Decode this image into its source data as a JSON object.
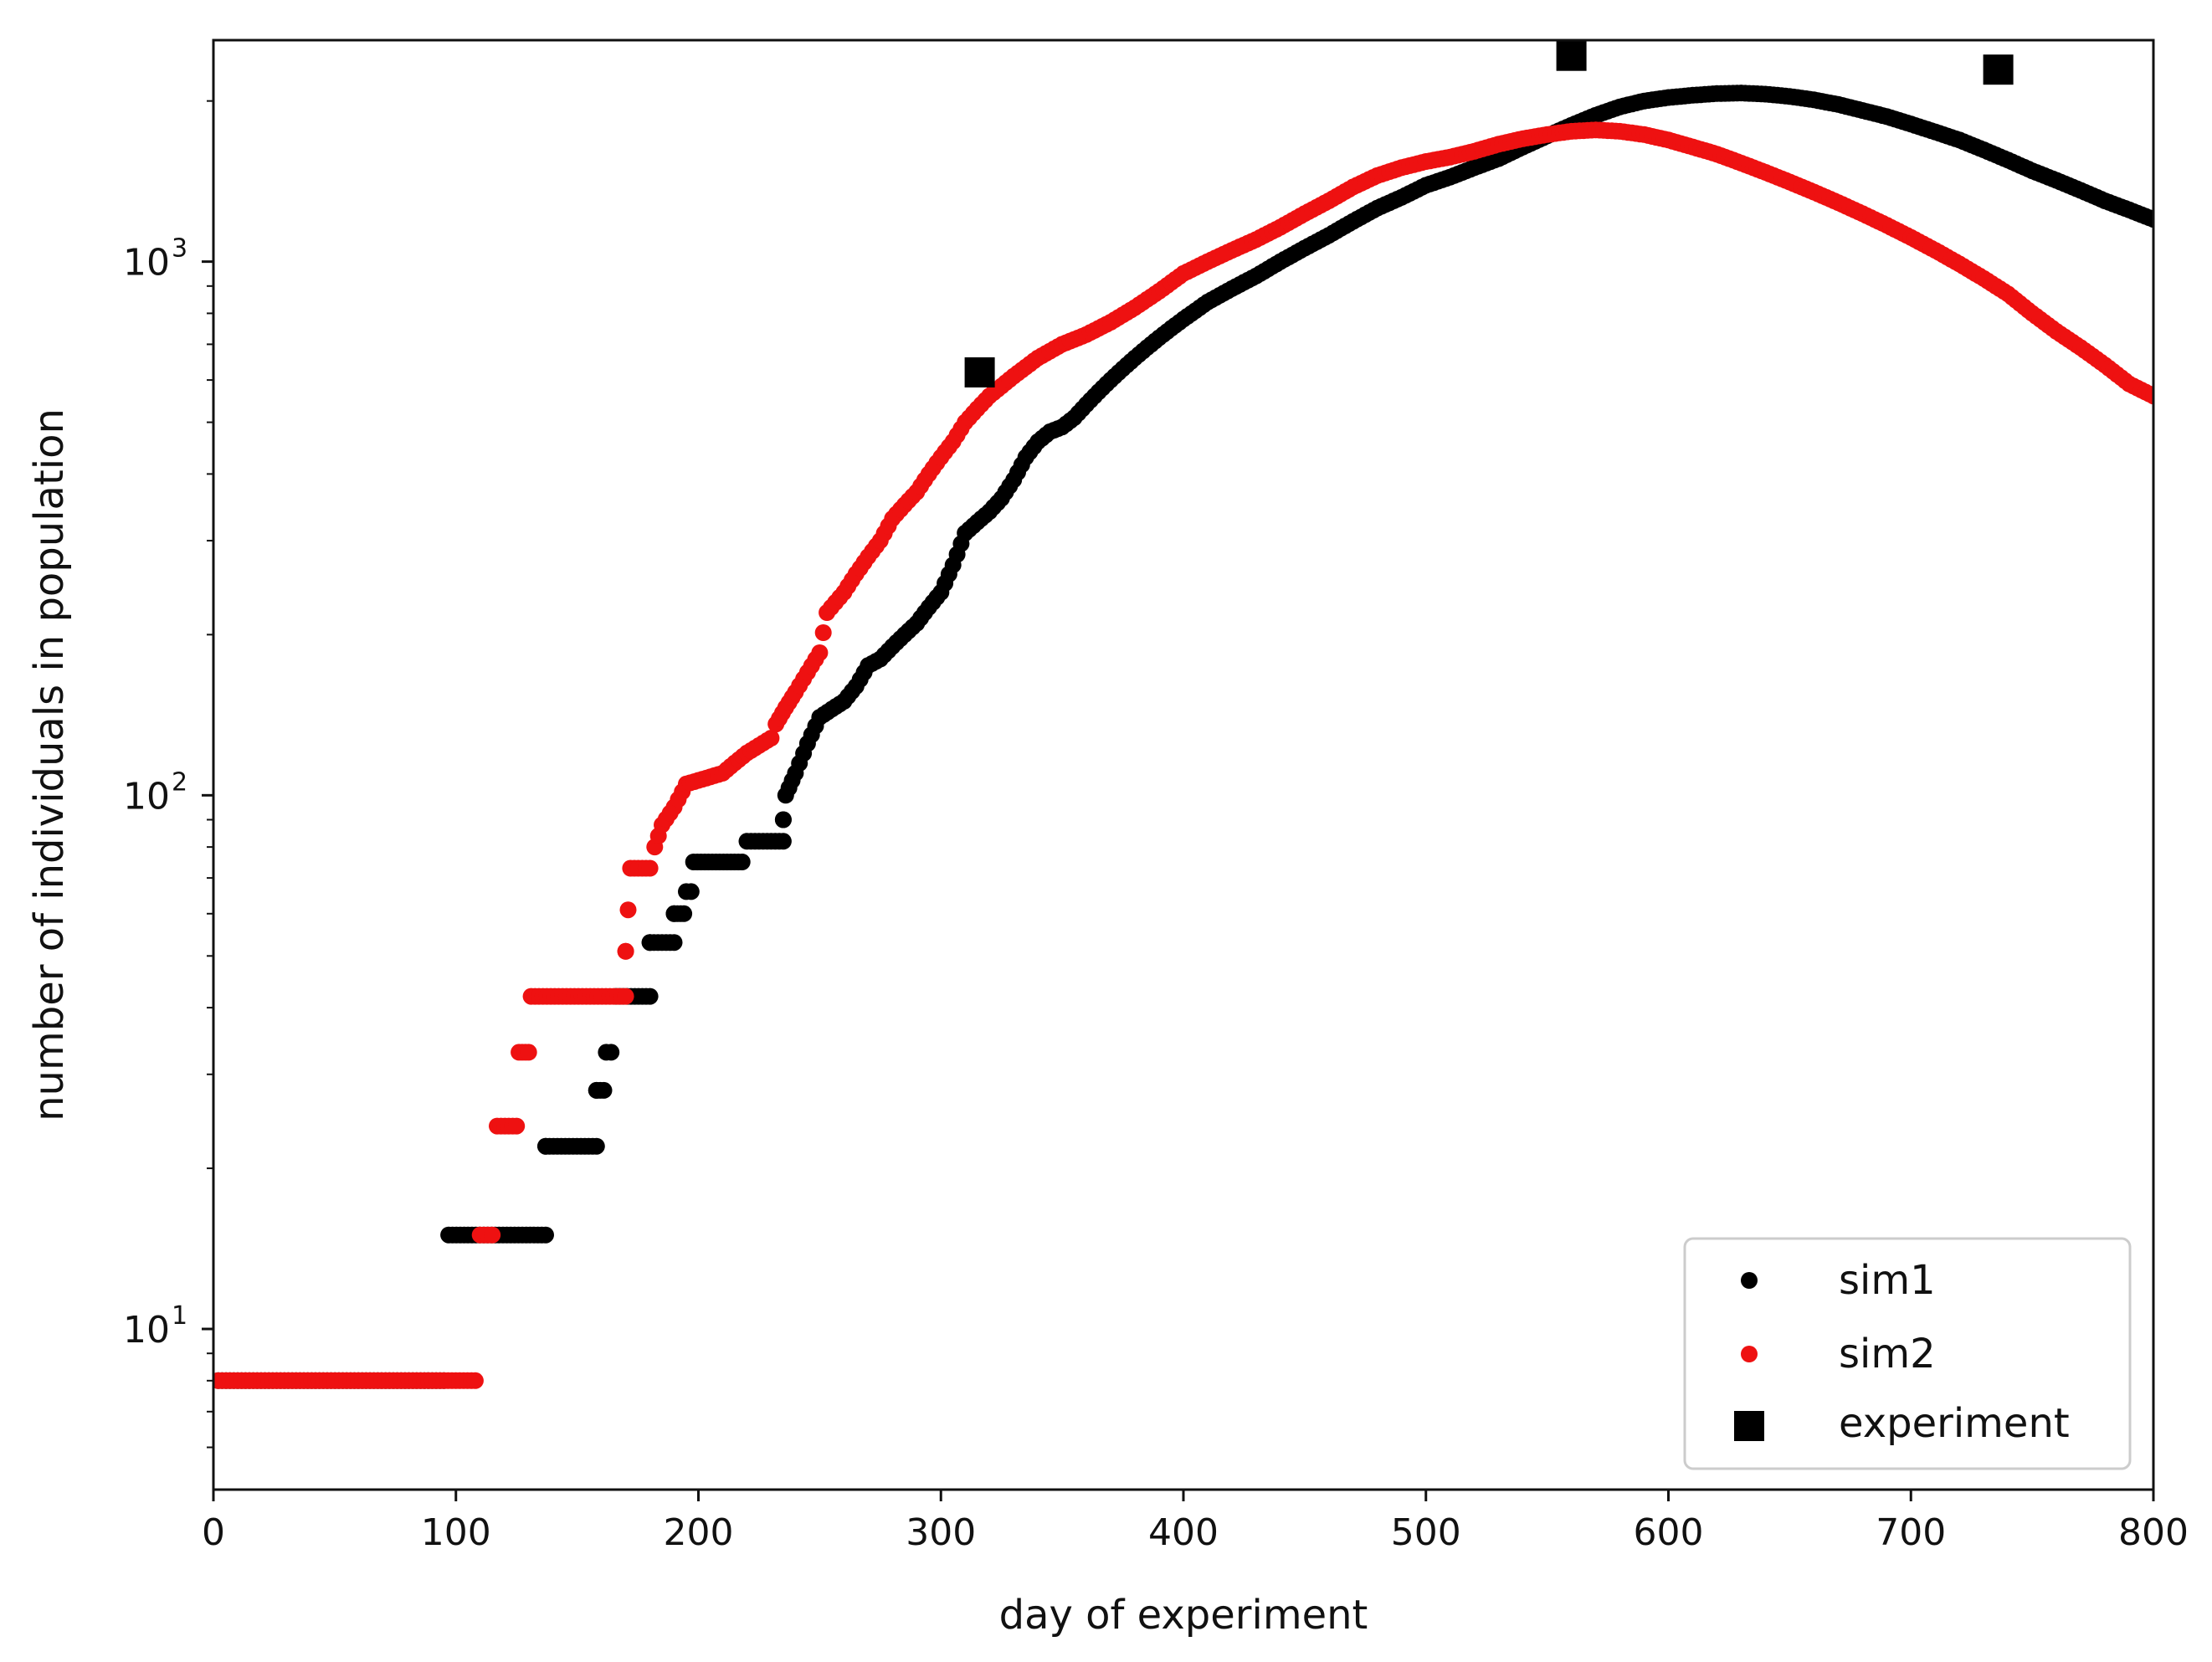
{
  "chart_data": {
    "type": "scatter",
    "title": "",
    "xlabel": "day of experiment",
    "ylabel": "number of individuals in population",
    "xlim": [
      0,
      800
    ],
    "ylim": [
      5,
      2600
    ],
    "yscale": "log",
    "grid": false,
    "legend_position": "bottom-right",
    "x_ticks": [
      0,
      100,
      200,
      300,
      400,
      500,
      600,
      700,
      800
    ],
    "y_major_ticks": [
      {
        "value": 10,
        "base": "10",
        "exp": "1"
      },
      {
        "value": 100,
        "base": "10",
        "exp": "2"
      },
      {
        "value": 1000,
        "base": "10",
        "exp": "3"
      }
    ],
    "y_minor_ticks": [
      6,
      7,
      8,
      9,
      20,
      30,
      40,
      50,
      60,
      70,
      80,
      90,
      200,
      300,
      400,
      500,
      600,
      700,
      800,
      900,
      2000
    ],
    "series": [
      {
        "name": "sim1",
        "marker": "dot",
        "color": "#000000",
        "points": [
          [
            2,
            8
          ],
          [
            95,
            8
          ],
          [
            97,
            15
          ],
          [
            137,
            15
          ],
          [
            137,
            22
          ],
          [
            158,
            22
          ],
          [
            158,
            28
          ],
          [
            161,
            28
          ],
          [
            162,
            33
          ],
          [
            164,
            33
          ],
          [
            166,
            42
          ],
          [
            180,
            42
          ],
          [
            180,
            53
          ],
          [
            190,
            53
          ],
          [
            190,
            60
          ],
          [
            194,
            60
          ],
          [
            195,
            66
          ],
          [
            197,
            66
          ],
          [
            198,
            75
          ],
          [
            218,
            75
          ],
          [
            220,
            82
          ],
          [
            235,
            82
          ],
          [
            235,
            90
          ],
          [
            236,
            100
          ],
          [
            240,
            110
          ],
          [
            245,
            125
          ],
          [
            250,
            140
          ],
          [
            255,
            145
          ],
          [
            260,
            150
          ],
          [
            265,
            160
          ],
          [
            270,
            175
          ],
          [
            275,
            180
          ],
          [
            280,
            190
          ],
          [
            285,
            200
          ],
          [
            290,
            210
          ],
          [
            295,
            225
          ],
          [
            300,
            240
          ],
          [
            305,
            270
          ],
          [
            310,
            310
          ],
          [
            315,
            325
          ],
          [
            320,
            340
          ],
          [
            325,
            360
          ],
          [
            330,
            390
          ],
          [
            335,
            430
          ],
          [
            340,
            460
          ],
          [
            345,
            480
          ],
          [
            350,
            490
          ],
          [
            355,
            510
          ],
          [
            360,
            540
          ],
          [
            365,
            570
          ],
          [
            370,
            600
          ],
          [
            375,
            630
          ],
          [
            380,
            660
          ],
          [
            385,
            690
          ],
          [
            390,
            720
          ],
          [
            395,
            750
          ],
          [
            400,
            780
          ],
          [
            410,
            840
          ],
          [
            420,
            890
          ],
          [
            430,
            940
          ],
          [
            440,
            1000
          ],
          [
            450,
            1060
          ],
          [
            460,
            1120
          ],
          [
            470,
            1190
          ],
          [
            480,
            1260
          ],
          [
            490,
            1320
          ],
          [
            500,
            1390
          ],
          [
            510,
            1440
          ],
          [
            520,
            1500
          ],
          [
            530,
            1560
          ],
          [
            540,
            1640
          ],
          [
            550,
            1720
          ],
          [
            560,
            1800
          ],
          [
            570,
            1880
          ],
          [
            580,
            1950
          ],
          [
            590,
            2000
          ],
          [
            600,
            2030
          ],
          [
            610,
            2050
          ],
          [
            620,
            2065
          ],
          [
            630,
            2070
          ],
          [
            640,
            2060
          ],
          [
            650,
            2040
          ],
          [
            660,
            2010
          ],
          [
            670,
            1970
          ],
          [
            680,
            1920
          ],
          [
            690,
            1870
          ],
          [
            700,
            1810
          ],
          [
            710,
            1750
          ],
          [
            720,
            1690
          ],
          [
            730,
            1620
          ],
          [
            740,
            1550
          ],
          [
            750,
            1480
          ],
          [
            760,
            1420
          ],
          [
            770,
            1360
          ],
          [
            780,
            1300
          ],
          [
            790,
            1250
          ],
          [
            800,
            1200
          ]
        ]
      },
      {
        "name": "sim2",
        "marker": "dot",
        "color": "#ee1111",
        "points": [
          [
            2,
            8
          ],
          [
            108,
            8
          ],
          [
            110,
            15
          ],
          [
            115,
            15
          ],
          [
            117,
            24
          ],
          [
            125,
            24
          ],
          [
            126,
            33
          ],
          [
            130,
            33
          ],
          [
            131,
            42
          ],
          [
            170,
            42
          ],
          [
            170,
            51
          ],
          [
            171,
            61
          ],
          [
            172,
            73
          ],
          [
            180,
            73
          ],
          [
            182,
            80
          ],
          [
            185,
            88
          ],
          [
            190,
            95
          ],
          [
            195,
            105
          ],
          [
            210,
            110
          ],
          [
            215,
            115
          ],
          [
            220,
            120
          ],
          [
            230,
            128
          ],
          [
            232,
            136
          ],
          [
            236,
            146
          ],
          [
            240,
            156
          ],
          [
            245,
            170
          ],
          [
            250,
            185
          ],
          [
            253,
            220
          ],
          [
            260,
            240
          ],
          [
            265,
            260
          ],
          [
            270,
            280
          ],
          [
            275,
            300
          ],
          [
            280,
            330
          ],
          [
            285,
            350
          ],
          [
            290,
            370
          ],
          [
            295,
            400
          ],
          [
            300,
            430
          ],
          [
            305,
            460
          ],
          [
            310,
            500
          ],
          [
            315,
            530
          ],
          [
            320,
            560
          ],
          [
            330,
            610
          ],
          [
            340,
            660
          ],
          [
            350,
            700
          ],
          [
            360,
            730
          ],
          [
            370,
            770
          ],
          [
            380,
            820
          ],
          [
            390,
            880
          ],
          [
            400,
            950
          ],
          [
            410,
            1000
          ],
          [
            420,
            1050
          ],
          [
            430,
            1100
          ],
          [
            440,
            1160
          ],
          [
            450,
            1230
          ],
          [
            460,
            1300
          ],
          [
            470,
            1380
          ],
          [
            480,
            1450
          ],
          [
            490,
            1500
          ],
          [
            500,
            1540
          ],
          [
            510,
            1570
          ],
          [
            520,
            1610
          ],
          [
            530,
            1660
          ],
          [
            540,
            1700
          ],
          [
            550,
            1730
          ],
          [
            560,
            1755
          ],
          [
            570,
            1765
          ],
          [
            580,
            1755
          ],
          [
            590,
            1730
          ],
          [
            600,
            1690
          ],
          [
            610,
            1640
          ],
          [
            620,
            1590
          ],
          [
            630,
            1530
          ],
          [
            640,
            1470
          ],
          [
            650,
            1410
          ],
          [
            660,
            1350
          ],
          [
            670,
            1290
          ],
          [
            680,
            1230
          ],
          [
            690,
            1170
          ],
          [
            700,
            1110
          ],
          [
            710,
            1050
          ],
          [
            720,
            990
          ],
          [
            730,
            930
          ],
          [
            740,
            870
          ],
          [
            750,
            800
          ],
          [
            760,
            740
          ],
          [
            770,
            690
          ],
          [
            780,
            640
          ],
          [
            790,
            590
          ],
          [
            800,
            560
          ]
        ]
      },
      {
        "name": "experiment",
        "marker": "square",
        "color": "#000000",
        "points": [
          [
            316,
            620
          ],
          [
            560,
            2430
          ],
          [
            736,
            2290
          ]
        ]
      }
    ]
  }
}
